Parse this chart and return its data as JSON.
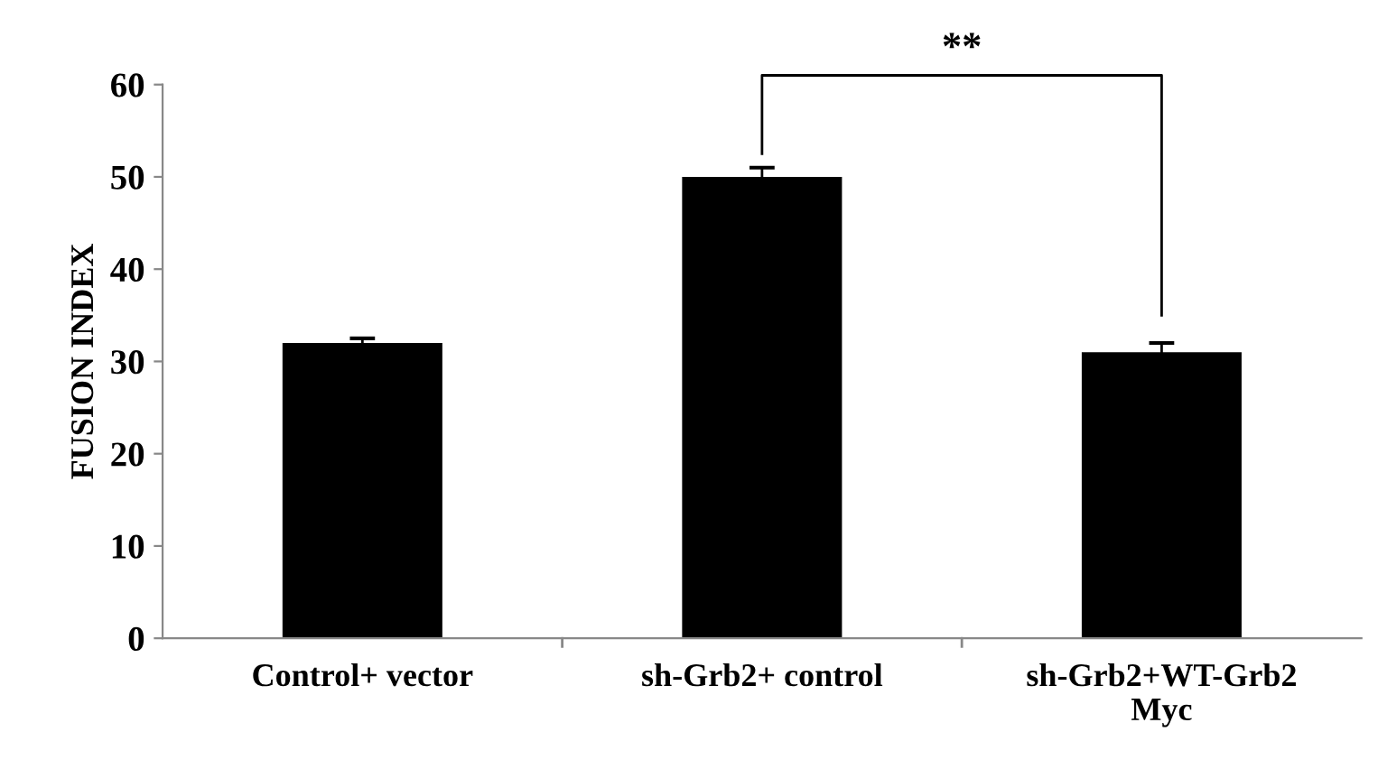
{
  "chart_data": {
    "type": "bar",
    "ylabel": "FUSION INDEX",
    "categories": [
      "Control+ vector",
      "sh-Grb2+ control",
      "sh-Grb2+WT-Grb2\nMyc"
    ],
    "values": [
      32,
      50,
      31
    ],
    "errors": [
      0.5,
      1,
      1
    ],
    "color": "#000000",
    "ylim": [
      0,
      60
    ],
    "yticks": [
      0,
      10,
      20,
      30,
      40,
      50,
      60
    ],
    "grid": false,
    "legend": false,
    "annotations": [
      "**"
    ]
  }
}
